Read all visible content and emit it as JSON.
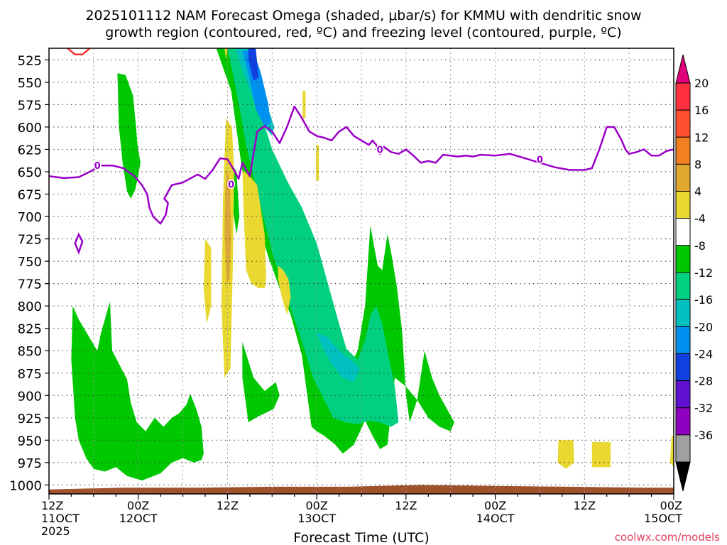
{
  "chart_data": {
    "type": "heatmap",
    "title_line1": "2025101112 NAM Forecast Omega (shaded, μbar/s) for KMMU with dendritic snow",
    "title_line2": "growth region (contoured, red, ºC) and freezing level (contoured, purple, ºC)",
    "xlabel": "Forecast Time (UTC)",
    "ylabel": "",
    "credit": "coolwx.com/models",
    "x_range_hours": [
      0,
      84
    ],
    "y_range_hpa": [
      512,
      1010
    ],
    "y_ticks": [
      525,
      550,
      575,
      600,
      625,
      650,
      675,
      700,
      725,
      750,
      775,
      800,
      825,
      850,
      875,
      900,
      925,
      950,
      975,
      1000
    ],
    "x_ticks": [
      {
        "hour": 0,
        "line1": "12Z",
        "line2": "11OCT",
        "line3": "2025"
      },
      {
        "hour": 12,
        "line1": "00Z",
        "line2": "12OCT",
        "line3": ""
      },
      {
        "hour": 24,
        "line1": "12Z",
        "line2": "",
        "line3": ""
      },
      {
        "hour": 36,
        "line1": "00Z",
        "line2": "13OCT",
        "line3": ""
      },
      {
        "hour": 48,
        "line1": "12Z",
        "line2": "",
        "line3": ""
      },
      {
        "hour": 60,
        "line1": "00Z",
        "line2": "14OCT",
        "line3": ""
      },
      {
        "hour": 72,
        "line1": "12Z",
        "line2": "",
        "line3": ""
      },
      {
        "hour": 84,
        "line1": "00Z",
        "line2": "15OCT",
        "line3": ""
      }
    ],
    "colorbar": {
      "labels": [
        20,
        16,
        12,
        8,
        4,
        -4,
        -8,
        -12,
        -16,
        -20,
        -24,
        -28,
        -32,
        -36
      ],
      "colors": [
        "#ff3040",
        "#ff5030",
        "#f08020",
        "#e0a830",
        "#e8d830",
        "#ffffff",
        "#00c800",
        "#00d080",
        "#00c0c0",
        "#0090f0",
        "#1040e0",
        "#6010d0",
        "#9000c0",
        "#a0a0a0"
      ],
      "top_arrow_color": "#e0007a",
      "bottom_arrow_color": "#000000"
    },
    "freezing_level": {
      "label": "0",
      "color": "#9a00c8",
      "hours": [
        0,
        2,
        4,
        5.5,
        7,
        8.5,
        10,
        11.5,
        12.5,
        13.2,
        13.5,
        14,
        15,
        15.7,
        16,
        15.5,
        16.5,
        18,
        20,
        21,
        22,
        23,
        24,
        25,
        25.5,
        26,
        27,
        28,
        29,
        30,
        31,
        32,
        33,
        34,
        35,
        36,
        37,
        38,
        39,
        40,
        41,
        42,
        43,
        43.5,
        44,
        44.5,
        45,
        46,
        47,
        48,
        49,
        50,
        51,
        52,
        53,
        54,
        55,
        56,
        57,
        58,
        60,
        62,
        64,
        66,
        68,
        70,
        72,
        73,
        74,
        75,
        76,
        77,
        77.5,
        78,
        79,
        80,
        81,
        82,
        83,
        84
      ],
      "hpa": [
        655,
        657,
        656,
        650,
        643,
        643,
        646,
        655,
        665,
        675,
        690,
        700,
        708,
        698,
        685,
        680,
        665,
        662,
        653,
        658,
        648,
        635,
        636,
        650,
        658,
        640,
        655,
        605,
        599,
        605,
        618,
        600,
        577,
        590,
        605,
        610,
        612,
        615,
        605,
        600,
        610,
        615,
        620,
        615,
        620,
        630,
        622,
        628,
        630,
        625,
        632,
        640,
        638,
        640,
        631,
        632,
        633,
        632,
        633,
        631,
        632,
        630,
        635,
        640,
        645,
        648,
        648,
        646,
        625,
        600,
        600,
        615,
        625,
        630,
        628,
        625,
        632,
        632,
        627,
        625,
        628
      ],
      "loop": {
        "hours": [
          3.5,
          4,
          4.5,
          4
        ],
        "hpa": [
          730,
          720,
          728,
          740
        ]
      }
    },
    "dgz_segment": {
      "color": "#ff3030",
      "hours": [
        2.5,
        3.5,
        4.5,
        5.5
      ],
      "hpa": [
        512,
        519,
        519,
        512
      ]
    },
    "omega_regions": [
      {
        "value": -6,
        "color": "#00c800",
        "hours": [
          9.2,
          10.3,
          11.3,
          11.7,
          11.9,
          12.3,
          12.0,
          11.6,
          11.0,
          10.5,
          9.9,
          9.4
        ],
        "hpa": [
          540,
          542,
          565,
          600,
          620,
          640,
          655,
          670,
          680,
          672,
          640,
          600
        ]
      },
      {
        "value": -6,
        "color": "#00c800",
        "hours": [
          3.2,
          4.0,
          6.5,
          7.0,
          8.2,
          8.5,
          10.5,
          11.0,
          11.8,
          13.0,
          14.2,
          15.4,
          16.5,
          17.5,
          18.5,
          19.0,
          19.8,
          20.5,
          20.8,
          20.5,
          19.5,
          18.0,
          16.5,
          15.0,
          12.5,
          10.5,
          9.0,
          7.5,
          6.0,
          5.0,
          4.0,
          3.5,
          3.0
        ],
        "hpa": [
          800,
          815,
          850,
          830,
          795,
          850,
          882,
          908,
          930,
          940,
          925,
          935,
          925,
          920,
          910,
          898,
          915,
          935,
          965,
          972,
          975,
          970,
          975,
          987,
          995,
          990,
          980,
          985,
          982,
          970,
          950,
          925,
          860
        ]
      },
      {
        "value": -6,
        "color": "#00c800",
        "hours": [
          26.0,
          27.5,
          29.0,
          30.5,
          31.0,
          30.2,
          29.0,
          27.8,
          26.8,
          26.0
        ],
        "hpa": [
          840,
          880,
          895,
          885,
          900,
          915,
          920,
          925,
          930,
          880
        ]
      },
      {
        "value": -6,
        "color": "#00c800",
        "hours": [
          24.5,
          25.2,
          25.6,
          25.2,
          24.7
        ],
        "hpa": [
          640,
          650,
          700,
          720,
          690
        ]
      },
      {
        "value": -6,
        "color": "#00c800",
        "hours": [
          22.5,
          25.5,
          27.0,
          28.0,
          29.0,
          30.5,
          32.0,
          33.0,
          34.5,
          36.0,
          36.8,
          37.5,
          38.5,
          40.0,
          41.5,
          42.5,
          43.2,
          44.2,
          44.8,
          45.5,
          46.0,
          46.8,
          47.5,
          48.0,
          48.5,
          49.5,
          50.5,
          51.5,
          52.5,
          53.5,
          54.5,
          54.0,
          52.5,
          51.0,
          49.5,
          48.0,
          46.5,
          45.5,
          44.5,
          43.5,
          42.5,
          41.0,
          39.5,
          38.5,
          37.0,
          36.0,
          35.3,
          34.0,
          32.5,
          31.0,
          29.5,
          28.0,
          26.0,
          24.5
        ],
        "hpa": [
          512,
          512,
          540,
          565,
          610,
          640,
          670,
          690,
          710,
          745,
          790,
          835,
          860,
          875,
          850,
          800,
          710,
          755,
          760,
          720,
          740,
          780,
          830,
          900,
          930,
          905,
          850,
          880,
          900,
          915,
          930,
          940,
          935,
          925,
          905,
          890,
          880,
          955,
          960,
          945,
          928,
          955,
          965,
          955,
          945,
          940,
          935,
          855,
          810,
          780,
          745,
          705,
          650,
          560
        ]
      },
      {
        "value": -10,
        "color": "#00d080",
        "hours": [
          24.0,
          26.5,
          27.5,
          28.5,
          30.0,
          32.0,
          34.0,
          36.0,
          38.0,
          39.0,
          40.0,
          41.5,
          42.5,
          43.3,
          44.0,
          44.8,
          45.5,
          46.5,
          47.0,
          46.0,
          44.5,
          43.0,
          41.5,
          39.8,
          38.2,
          37.0,
          35.5,
          34.0,
          32.0,
          30.0,
          28.5,
          26.5,
          25.2
        ],
        "hpa": [
          512,
          512,
          550,
          585,
          625,
          660,
          690,
          730,
          790,
          820,
          848,
          860,
          838,
          808,
          800,
          820,
          850,
          890,
          930,
          935,
          930,
          928,
          932,
          930,
          925,
          905,
          880,
          840,
          790,
          740,
          690,
          620,
          560
        ]
      },
      {
        "value": -14,
        "color": "#00c0c0",
        "hours": [
          25.0,
          27.0,
          28.5,
          29.5,
          30.3,
          30.0,
          29.0,
          27.5,
          26.0
        ],
        "hpa": [
          512,
          512,
          545,
          580,
          600,
          610,
          600,
          570,
          535
        ]
      },
      {
        "value": -14,
        "color": "#00c0c0",
        "hours": [
          36.0,
          37.5,
          39.0,
          40.5,
          41.8,
          41.0,
          39.5,
          38.0,
          37.0
        ],
        "hpa": [
          830,
          835,
          850,
          860,
          870,
          885,
          880,
          865,
          850
        ]
      },
      {
        "value": -18,
        "color": "#0090f0",
        "hours": [
          26.0,
          27.5,
          28.5,
          29.5,
          29.8,
          29.0,
          27.8,
          26.8
        ],
        "hpa": [
          515,
          515,
          540,
          575,
          595,
          600,
          580,
          540
        ]
      },
      {
        "value": -22,
        "color": "#1040e0",
        "hours": [
          26.8,
          27.8,
          28.2,
          27.5,
          26.8
        ],
        "hpa": [
          512,
          512,
          545,
          548,
          525
        ]
      },
      {
        "value": 6,
        "color": "#e8d830",
        "hours": [
          23.8,
          24.6,
          24.9,
          24.7,
          24.4,
          23.6,
          23.2,
          23.4,
          23.7
        ],
        "hpa": [
          590,
          600,
          650,
          760,
          870,
          880,
          800,
          680,
          610
        ]
      },
      {
        "value": 10,
        "color": "#e0a830",
        "hours": [
          23.9,
          24.3,
          24.5,
          24.3,
          23.9,
          23.6,
          23.7
        ],
        "hpa": [
          645,
          660,
          720,
          770,
          775,
          720,
          670
        ]
      },
      {
        "value": 6,
        "color": "#e8d830",
        "hours": [
          26.0,
          27.0,
          28.0,
          29.0,
          29.2,
          29.0,
          28.2,
          27.2,
          26.5,
          26.2
        ],
        "hpa": [
          648,
          655,
          665,
          720,
          770,
          780,
          780,
          775,
          760,
          700
        ]
      },
      {
        "value": 6,
        "color": "#e8d830",
        "hours": [
          21.0,
          21.8,
          21.8,
          21.2,
          20.8
        ],
        "hpa": [
          725,
          735,
          800,
          820,
          780
        ]
      },
      {
        "value": 6,
        "color": "#e8d830",
        "hours": [
          30.8,
          31.5,
          32.2,
          32.5,
          32.0,
          31.3,
          30.8
        ],
        "hpa": [
          755,
          760,
          770,
          790,
          810,
          790,
          770
        ]
      },
      {
        "value": 6,
        "color": "#e8d830",
        "hours": [
          23.6,
          24.0,
          23.8
        ],
        "hpa": [
          512,
          512,
          525
        ]
      },
      {
        "value": 6,
        "color": "#e8d830",
        "hours": [
          34.1,
          34.5,
          34.5,
          34.1
        ],
        "hpa": [
          560,
          560,
          590,
          590
        ]
      },
      {
        "value": 6,
        "color": "#e8d830",
        "hours": [
          35.9,
          36.3,
          36.3,
          35.9
        ],
        "hpa": [
          620,
          620,
          660,
          660
        ]
      },
      {
        "value": 6,
        "color": "#e8d830",
        "hours": [
          68.5,
          70.5,
          70.6,
          69.5,
          68.4
        ],
        "hpa": [
          950,
          950,
          975,
          982,
          975
        ]
      },
      {
        "value": 6,
        "color": "#e8d830",
        "hours": [
          73.0,
          75.5,
          75.5,
          73.0
        ],
        "hpa": [
          952,
          952,
          980,
          980
        ]
      },
      {
        "value": 6,
        "color": "#e8d830",
        "hours": [
          83.7,
          84.0,
          84.0,
          83.5
        ],
        "hpa": [
          945,
          945,
          980,
          975
        ]
      }
    ],
    "terrain": {
      "color": "#a0522d",
      "hours": [
        0,
        10,
        20,
        30,
        40,
        50,
        60,
        70,
        80,
        84
      ],
      "hpa": [
        1005,
        1003,
        1003,
        1002,
        1002,
        1000,
        1001,
        1002,
        1003,
        1003
      ]
    }
  }
}
